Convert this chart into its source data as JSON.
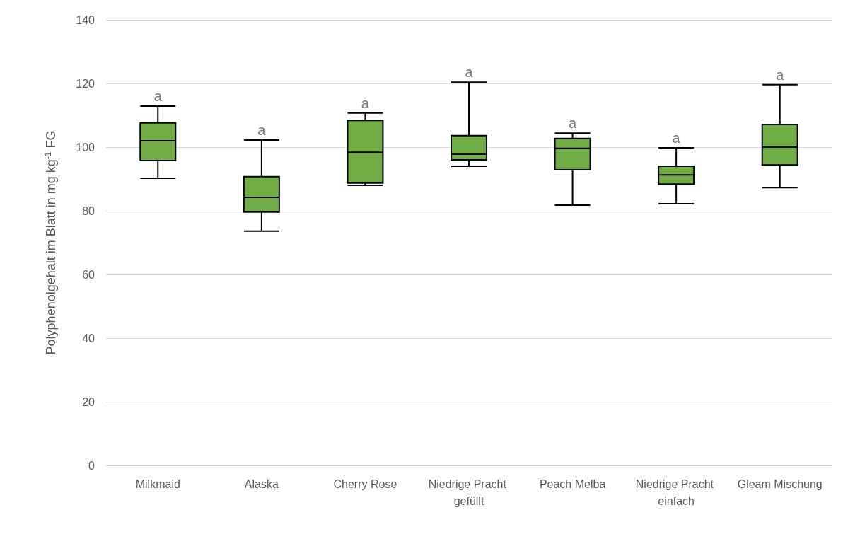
{
  "chart_data": {
    "type": "box",
    "ylabel": "Polyphenolgehalt im Blatt in mg kg$^{-1}$ FG",
    "categories": [
      "Milkmaid",
      "Alaska",
      "Cherry Rose",
      "Niedrige Pracht gefüllt",
      "Peach Melba",
      "Niedrige Pracht einfach",
      "Gleam Mischung"
    ],
    "color": "#70ad47",
    "boxes": [
      {
        "low": 90.2,
        "q1": 95.8,
        "median": 102,
        "q3": 107.6,
        "high": 112.9
      },
      {
        "low": 73.6,
        "q1": 79.6,
        "median": 84.2,
        "q3": 90.7,
        "high": 102.2
      },
      {
        "low": 88,
        "q1": 88.7,
        "median": 98.4,
        "q3": 108.4,
        "high": 110.7
      },
      {
        "low": 94,
        "q1": 96,
        "median": 97.8,
        "q3": 103.6,
        "high": 120.4
      },
      {
        "low": 81.8,
        "q1": 92.9,
        "median": 99.6,
        "q3": 102.7,
        "high": 104.4
      },
      {
        "low": 82.2,
        "q1": 88.4,
        "median": 91.3,
        "q3": 94,
        "high": 99.8
      },
      {
        "low": 87.3,
        "q1": 94.4,
        "median": 100,
        "q3": 107.1,
        "high": 119.6
      }
    ],
    "ylim": [
      0,
      140
    ],
    "yticks": [
      0,
      20,
      40,
      60,
      80,
      100,
      120,
      140
    ],
    "grid": "y",
    "annotations": [
      {
        "text": "a",
        "x": "Milkmaid",
        "y": 112.9
      },
      {
        "text": "a",
        "x": "Alaska",
        "y": 102.2
      },
      {
        "text": "a",
        "x": "Cherry Rose",
        "y": 110.7
      },
      {
        "text": "a",
        "x": "Niedrige Pracht gefüllt",
        "y": 120.4
      },
      {
        "text": "a",
        "x": "Peach Melba",
        "y": 104.4
      },
      {
        "text": "a",
        "x": "Niedrige Pracht einfach",
        "y": 99.8
      },
      {
        "text": "a",
        "x": "Gleam Mischung",
        "y": 119.6
      }
    ]
  }
}
